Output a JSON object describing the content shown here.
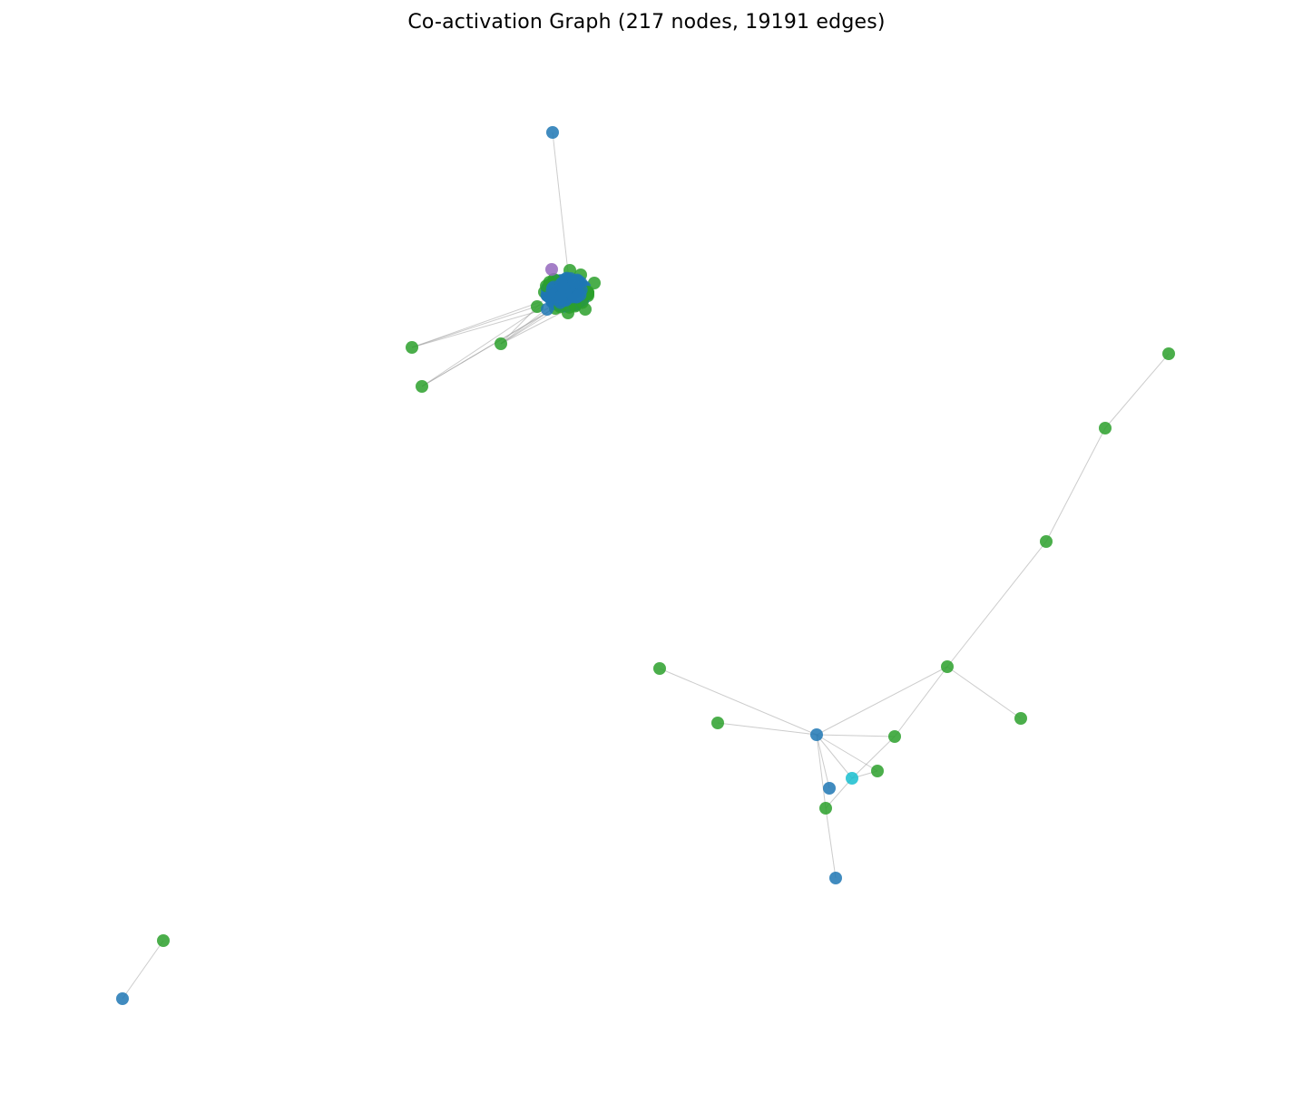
{
  "title": "Co-activation Graph (217 nodes, 19191 edges)",
  "colors": {
    "blue": "#1f77b4",
    "green": "#2ca02c",
    "purple": "#9467bd",
    "cyan": "#17becf",
    "edge": "#9a9a9a"
  },
  "graph": {
    "node_count": 217,
    "edge_count": 19191
  }
}
